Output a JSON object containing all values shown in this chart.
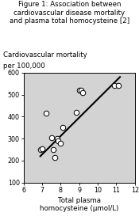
{
  "title": "Figure 1: Association between\ncardiovascular disease mortality\nand plasma total homocysteine [2]",
  "ylabel_line1": "Cardiovascular mortality",
  "ylabel_line2": "per 100,000",
  "xlabel": "Total plasma\nhomocysteine (μmol/L)",
  "scatter_x": [
    6.9,
    7.0,
    7.2,
    7.5,
    7.6,
    7.7,
    7.8,
    7.85,
    8.0,
    8.1,
    8.85,
    9.0,
    9.1,
    9.2,
    10.9,
    11.1
  ],
  "scatter_y": [
    250,
    255,
    415,
    305,
    250,
    215,
    300,
    290,
    280,
    350,
    420,
    520,
    520,
    510,
    540,
    540
  ],
  "trendline_x": [
    6.9,
    11.2
  ],
  "trendline_y": [
    220,
    580
  ],
  "xlim": [
    6,
    12
  ],
  "ylim": [
    100,
    600
  ],
  "xticks": [
    6,
    7,
    8,
    9,
    10,
    11,
    12
  ],
  "yticks": [
    100,
    200,
    300,
    400,
    500,
    600
  ],
  "background_color": "#d3d3d3",
  "scatter_facecolor": "white",
  "scatter_edgecolor": "black",
  "scatter_size": 22,
  "line_color": "black",
  "line_width": 1.5,
  "title_fontsize": 6.2,
  "ylabel_fontsize": 6.2,
  "xlabel_fontsize": 6.2,
  "tick_fontsize": 5.8
}
